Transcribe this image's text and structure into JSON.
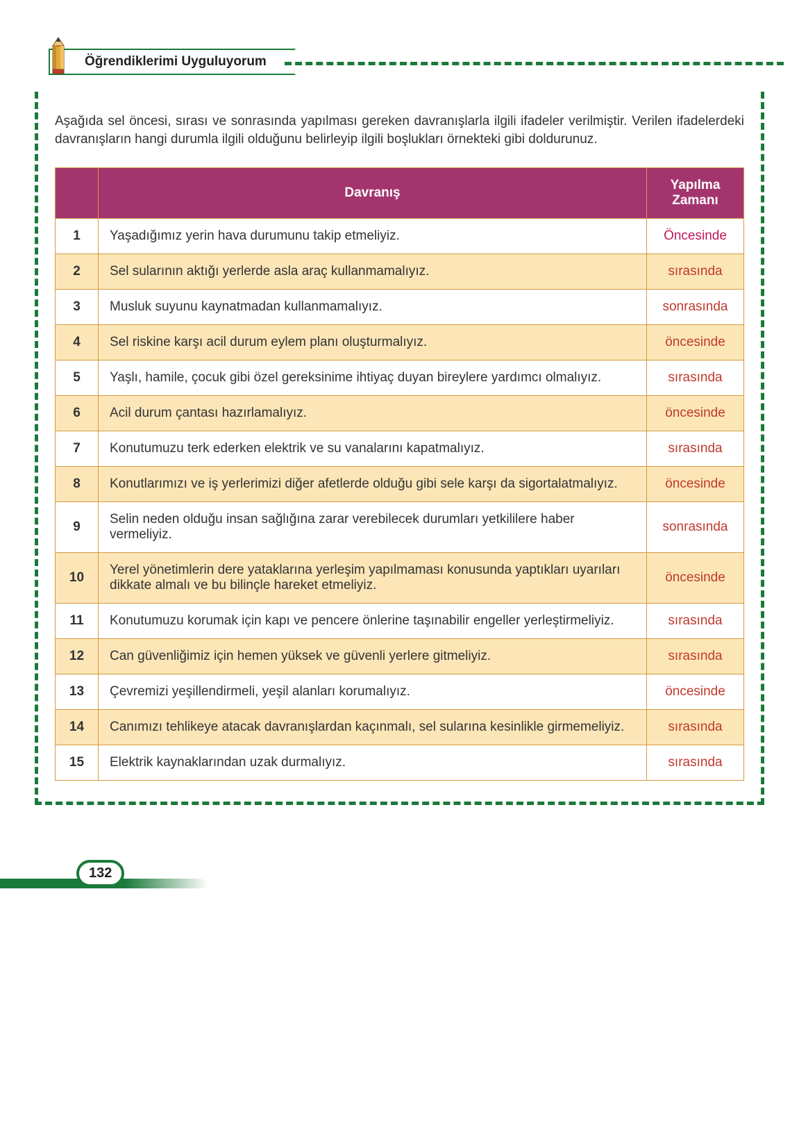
{
  "title": "Öğrendiklerimi Uyguluyorum",
  "intro": "Aşağıda sel öncesi, sırası ve sonrasında yapılması gereken davranışlarla ilgili ifadeler verilmiştir. Verilen ifadelerdeki davranışların hangi durumla ilgili olduğunu belirleyip ilgili boşlukları örnekteki gibi doldurunuz.",
  "columns": {
    "c1": "",
    "c2": "Davranış",
    "c3": "Yapılma Zamanı"
  },
  "rows": [
    {
      "n": "1",
      "text": "Yaşadığımız yerin hava durumunu takip etmeliyiz.",
      "zaman": "Öncesinde",
      "example": true
    },
    {
      "n": "2",
      "text": "Sel sularının aktığı yerlerde asla araç kullanmamalıyız.",
      "zaman": "sırasında",
      "example": false
    },
    {
      "n": "3",
      "text": "Musluk suyunu kaynatmadan kullanmamalıyız.",
      "zaman": "sonrasında",
      "example": false
    },
    {
      "n": "4",
      "text": "Sel riskine karşı acil durum eylem planı oluşturmalıyız.",
      "zaman": "öncesinde",
      "example": false
    },
    {
      "n": "5",
      "text": "Yaşlı, hamile, çocuk gibi özel gereksinime ihtiyaç duyan bireylere yardımcı olmalıyız.",
      "zaman": "sırasında",
      "example": false
    },
    {
      "n": "6",
      "text": "Acil durum çantası hazırlamalıyız.",
      "zaman": "öncesinde",
      "example": false
    },
    {
      "n": "7",
      "text": "Konutumuzu terk ederken elektrik ve su vanalarını kapatmalıyız.",
      "zaman": "sırasında",
      "example": false
    },
    {
      "n": "8",
      "text": "Konutlarımızı ve iş yerlerimizi diğer afetlerde olduğu gibi sele karşı da sigortalatmalıyız.",
      "zaman": "öncesinde",
      "example": false
    },
    {
      "n": "9",
      "text": "Selin neden olduğu insan sağlığına zarar verebilecek durumları yetkililere haber vermeliyiz.",
      "zaman": "sonrasında",
      "example": false
    },
    {
      "n": "10",
      "text": "Yerel yönetimlerin dere yataklarına yerleşim yapılmaması konusunda yaptıkları uyarıları dikkate almalı ve bu bilinçle hareket etmeliyiz.",
      "zaman": "öncesinde",
      "example": false
    },
    {
      "n": "11",
      "text": "Konutumuzu korumak için kapı ve pencere önlerine taşınabilir engeller yerleştirmeliyiz.",
      "zaman": "sırasında",
      "example": false
    },
    {
      "n": "12",
      "text": "Can güvenliğimiz için hemen yüksek ve güvenli yerlere gitmeliyiz.",
      "zaman": "sırasında",
      "example": false
    },
    {
      "n": "13",
      "text": "Çevremizi yeşillendirmeli, yeşil alanları korumalıyız.",
      "zaman": "öncesinde",
      "example": false
    },
    {
      "n": "14",
      "text": "Canımızı tehlikeye atacak davranışlardan kaçınmalı, sel sularına kesinlikle girmemeliyiz.",
      "zaman": "sırasında",
      "example": false
    },
    {
      "n": "15",
      "text": "Elektrik kaynaklarından uzak durmalıyız.",
      "zaman": "sırasında",
      "example": false
    }
  ],
  "pageNumber": "132",
  "colors": {
    "headerBg": "#a3356e",
    "borderGreen": "#1a7a3a",
    "cellBorder": "#d59a3e",
    "shadeRow": "#fce6b8",
    "exampleText": "#c2185b",
    "answerText": "#c0392b"
  }
}
